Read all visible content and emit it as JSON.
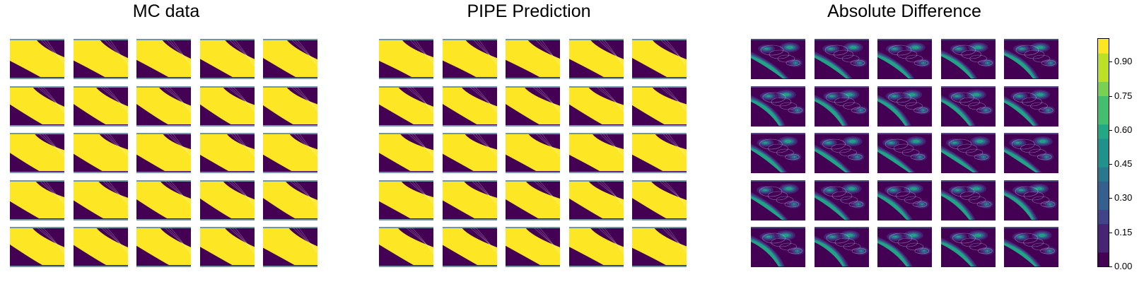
{
  "panels": {
    "mc": {
      "title": "MC data"
    },
    "pipe": {
      "title": "PIPE Prediction"
    },
    "diff": {
      "title": "Absolute Difference"
    }
  },
  "chart_data": {
    "type": "heatmap",
    "layout": "three panels, each a 5x5 grid of filled-contour snapshots",
    "colormap": "viridis",
    "colors": {
      "low": "#440154",
      "mid": "#21918c",
      "high": "#fde725"
    },
    "colorbar": {
      "range": [
        0.0,
        1.0
      ],
      "ticks": [
        "0.00",
        "0.15",
        "0.30",
        "0.45",
        "0.60",
        "0.75",
        "0.90"
      ],
      "tick_values": [
        0.0,
        0.15,
        0.3,
        0.45,
        0.6,
        0.75,
        0.9
      ],
      "levels": 16
    },
    "grid": {
      "rows": 5,
      "cols": 5
    }
  }
}
